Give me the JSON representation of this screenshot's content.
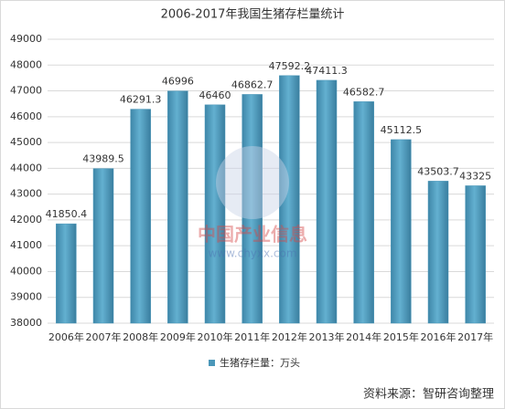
{
  "chart_data": {
    "type": "bar",
    "title": "2006-2017年我国生猪存栏量统计",
    "categories": [
      "2006年",
      "2007年",
      "2008年",
      "2009年",
      "2010年",
      "2011年",
      "2012年",
      "2013年",
      "2014年",
      "2015年",
      "2016年",
      "2017年"
    ],
    "series": [
      {
        "name": "生猪存栏量：万头",
        "color": "#4b97b9",
        "values": [
          41850.4,
          43989.5,
          46291.3,
          46996,
          46460,
          46862.7,
          47592.2,
          47411.3,
          46582.7,
          45112.5,
          43503.7,
          43325
        ]
      }
    ],
    "ylim": [
      38000,
      49000
    ],
    "yticks": [
      38000,
      39000,
      40000,
      41000,
      42000,
      43000,
      44000,
      45000,
      46000,
      47000,
      48000,
      49000
    ],
    "grid": true,
    "legend": "bottom",
    "watermark": [
      "中国产业信息",
      "www.chyxx.com"
    ],
    "source": "资料来源：智研咨询整理"
  }
}
